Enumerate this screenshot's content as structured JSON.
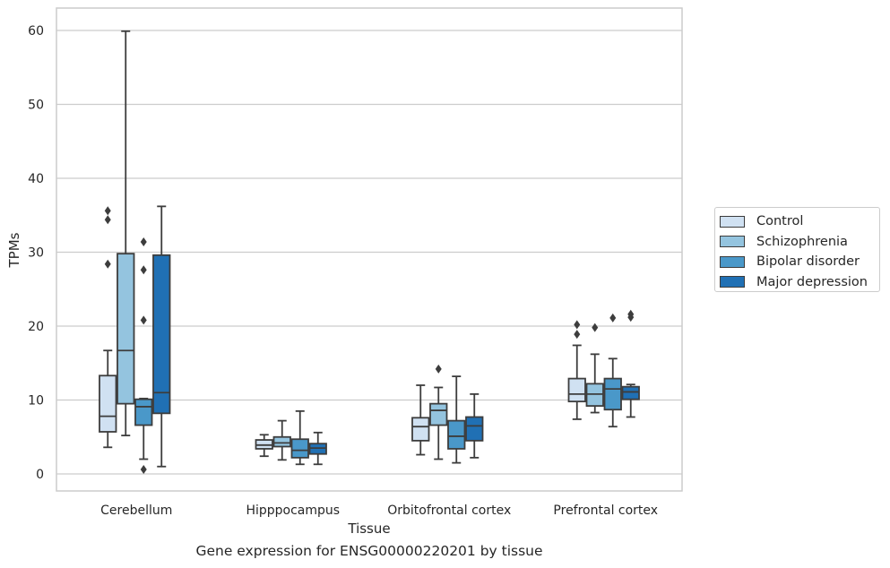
{
  "chart_data": {
    "type": "box",
    "caption": "Gene expression for ENSG00000220201 by tissue",
    "xlabel": "Tissue",
    "ylabel": "TPMs",
    "ylim": [
      -2.2,
      63
    ],
    "yticks": [
      0,
      10,
      20,
      30,
      40,
      50,
      60
    ],
    "ytick_labels": [
      "0",
      "10",
      "20",
      "30",
      "40",
      "50",
      "60"
    ],
    "grid": true,
    "legend_position": "right",
    "categories": [
      "Cerebellum",
      "Hipppocampus",
      "Orbitofrontal cortex",
      "Prefrontal cortex"
    ],
    "series": [
      {
        "name": "Control",
        "color": "#d0e1f2",
        "boxes": [
          {
            "whisker_low": 3.6,
            "q1": 5.7,
            "median": 7.8,
            "q3": 13.3,
            "whisker_high": 16.7,
            "outliers": [
              28.4,
              34.4,
              35.6
            ]
          },
          {
            "whisker_low": 2.4,
            "q1": 3.4,
            "median": 3.9,
            "q3": 4.6,
            "whisker_high": 5.3,
            "outliers": []
          },
          {
            "whisker_low": 2.6,
            "q1": 4.5,
            "median": 6.4,
            "q3": 7.6,
            "whisker_high": 12.0,
            "outliers": []
          },
          {
            "whisker_low": 7.4,
            "q1": 9.8,
            "median": 10.8,
            "q3": 12.9,
            "whisker_high": 17.4,
            "outliers": [
              18.9,
              20.2
            ]
          }
        ]
      },
      {
        "name": "Schizophrenia",
        "color": "#94c4df",
        "boxes": [
          {
            "whisker_low": 5.2,
            "q1": 9.5,
            "median": 16.7,
            "q3": 29.8,
            "whisker_high": 59.9,
            "outliers": []
          },
          {
            "whisker_low": 1.9,
            "q1": 3.7,
            "median": 4.2,
            "q3": 5.0,
            "whisker_high": 7.2,
            "outliers": []
          },
          {
            "whisker_low": 2.0,
            "q1": 6.6,
            "median": 8.6,
            "q3": 9.5,
            "whisker_high": 11.7,
            "outliers": [
              14.2
            ]
          },
          {
            "whisker_low": 8.3,
            "q1": 9.2,
            "median": 10.8,
            "q3": 12.2,
            "whisker_high": 16.2,
            "outliers": [
              19.8
            ]
          }
        ]
      },
      {
        "name": "Bipolar disorder",
        "color": "#4a98c9",
        "boxes": [
          {
            "whisker_low": 2.0,
            "q1": 6.6,
            "median": 9.1,
            "q3": 10.1,
            "whisker_high": 10.2,
            "outliers": [
              0.6,
              20.8,
              27.6,
              31.4
            ]
          },
          {
            "whisker_low": 1.3,
            "q1": 2.2,
            "median": 3.2,
            "q3": 4.7,
            "whisker_high": 8.5,
            "outliers": []
          },
          {
            "whisker_low": 1.5,
            "q1": 3.4,
            "median": 5.1,
            "q3": 7.2,
            "whisker_high": 13.2,
            "outliers": []
          },
          {
            "whisker_low": 6.4,
            "q1": 8.7,
            "median": 11.5,
            "q3": 12.9,
            "whisker_high": 15.6,
            "outliers": [
              21.1
            ]
          }
        ]
      },
      {
        "name": "Major depression",
        "color": "#2070b4",
        "boxes": [
          {
            "whisker_low": 1.0,
            "q1": 8.2,
            "median": 11.0,
            "q3": 29.6,
            "whisker_high": 36.2,
            "outliers": []
          },
          {
            "whisker_low": 1.3,
            "q1": 2.7,
            "median": 3.5,
            "q3": 4.1,
            "whisker_high": 5.6,
            "outliers": []
          },
          {
            "whisker_low": 2.2,
            "q1": 4.5,
            "median": 6.5,
            "q3": 7.7,
            "whisker_high": 10.8,
            "outliers": []
          },
          {
            "whisker_low": 7.7,
            "q1": 10.1,
            "median": 11.1,
            "q3": 11.8,
            "whisker_high": 12.1,
            "outliers": [
              21.2,
              21.6
            ]
          }
        ]
      }
    ]
  }
}
